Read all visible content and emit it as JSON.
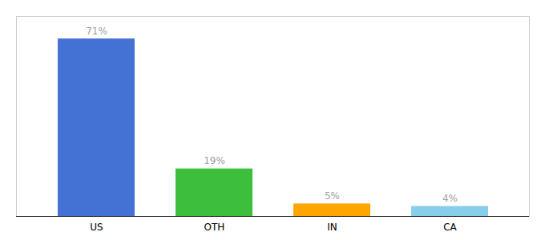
{
  "chart_data": {
    "type": "bar",
    "categories": [
      "US",
      "OTH",
      "IN",
      "CA"
    ],
    "values": [
      71,
      19,
      5,
      4
    ],
    "value_labels": [
      "71%",
      "19%",
      "5%",
      "4%"
    ],
    "colors": [
      "#4472D4",
      "#3DBF3D",
      "#FFA500",
      "#87CEEB"
    ],
    "ylim": [
      0,
      80
    ],
    "data_labels": true,
    "tick_labels": "x",
    "grid": false
  }
}
